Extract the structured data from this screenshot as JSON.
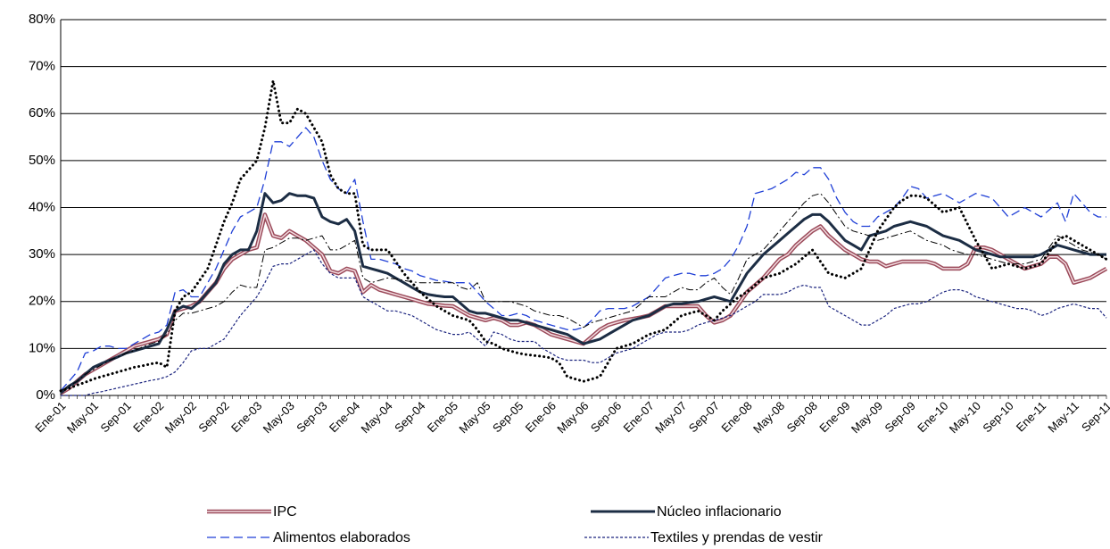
{
  "chart_data": {
    "type": "line",
    "categories": [
      "Ene-01",
      null,
      null,
      null,
      "May-01",
      null,
      null,
      null,
      "Sep-01",
      null,
      null,
      null,
      "Ene-02",
      null,
      null,
      null,
      "May-02",
      null,
      null,
      null,
      "Sep-02",
      null,
      null,
      null,
      "Ene-03",
      null,
      null,
      null,
      "May-03",
      null,
      null,
      null,
      "Sep-03",
      null,
      null,
      null,
      "Ene-04",
      null,
      null,
      null,
      "May-04",
      null,
      null,
      null,
      "Sep-04",
      null,
      null,
      null,
      "Ene-05",
      null,
      null,
      null,
      "May-05",
      null,
      null,
      null,
      "Sep-05",
      null,
      null,
      null,
      "Ene-06",
      null,
      null,
      null,
      "May-06",
      null,
      null,
      null,
      "Sep-06",
      null,
      null,
      null,
      "Ene-07",
      null,
      null,
      null,
      "May-07",
      null,
      null,
      null,
      "Sep-07",
      null,
      null,
      null,
      "Ene-08",
      null,
      null,
      null,
      "May-08",
      null,
      null,
      null,
      "Sep-08",
      null,
      null,
      null,
      "Ene-09",
      null,
      null,
      null,
      "May-09",
      null,
      null,
      null,
      "Sep-09",
      null,
      null,
      null,
      "Ene-10",
      null,
      null,
      null,
      "May-10",
      null,
      null,
      null,
      "Sep-10",
      null,
      null,
      null,
      "Ene-11",
      null,
      null,
      null,
      "May-11",
      null,
      null,
      null,
      "Sep-11"
    ],
    "ylim": [
      0,
      80
    ],
    "yticks": [
      {
        "value": 0,
        "label": "0%"
      },
      {
        "value": 10,
        "label": "10%"
      },
      {
        "value": 20,
        "label": "20%"
      },
      {
        "value": 30,
        "label": "30%"
      },
      {
        "value": 40,
        "label": "40%"
      },
      {
        "value": 50,
        "label": "50%"
      },
      {
        "value": 60,
        "label": "60%"
      },
      {
        "value": 70,
        "label": "70%"
      },
      {
        "value": 80,
        "label": "80%"
      }
    ],
    "grid": true,
    "series": [
      {
        "name": "IPC",
        "color": "#9b4a5a",
        "style": "double",
        "values": [
          0.5,
          1.5,
          3,
          4.5,
          5.5,
          6.5,
          7.5,
          8.5,
          9.5,
          10.5,
          11,
          11.5,
          12,
          13,
          18,
          18.5,
          19,
          20,
          22,
          24,
          27,
          29,
          30,
          31,
          31.5,
          38.5,
          34,
          33.5,
          35,
          34,
          33,
          31.5,
          30,
          26.5,
          26,
          27,
          26.5,
          22,
          23.5,
          22.5,
          22,
          21.5,
          21,
          20.5,
          20,
          19.5,
          19.3,
          19.1,
          19,
          18,
          17,
          16.5,
          16,
          16.5,
          16,
          15,
          15,
          15.5,
          15,
          14,
          13,
          12.5,
          12,
          11.5,
          11,
          12.5,
          14,
          15,
          15.5,
          16,
          16.3,
          16.6,
          17,
          18,
          19,
          19,
          19,
          19,
          19,
          17,
          15.5,
          16,
          17,
          19.5,
          22,
          23.5,
          25,
          27,
          29,
          30,
          32,
          33.5,
          35,
          36,
          34,
          32.5,
          31,
          30,
          29,
          28.5,
          28.5,
          27.5,
          28,
          28.5,
          28.5,
          28.5,
          28.5,
          28,
          27,
          27,
          27,
          28,
          31.5,
          31.5,
          31,
          30,
          29,
          28,
          27,
          27.5,
          28,
          29.5,
          29.5,
          28,
          24,
          24.5,
          25,
          26,
          27
        ]
      },
      {
        "name": "Núcleo inflacionario",
        "color": "#1c2d44",
        "style": "solid",
        "values": [
          0.5,
          2,
          3,
          4.5,
          6,
          6.8,
          7.5,
          8.2,
          9,
          9.5,
          10,
          10.5,
          11,
          14,
          18,
          19,
          18.5,
          20,
          22,
          24,
          28,
          30,
          31,
          31,
          35,
          43,
          41,
          41.5,
          43,
          42.5,
          42.5,
          42,
          38,
          37,
          36.5,
          37.5,
          35,
          27.5,
          27,
          26.5,
          26,
          25,
          24,
          23,
          22,
          21.5,
          21.2,
          21,
          21,
          19.5,
          18,
          17.5,
          17.5,
          17,
          16.5,
          16,
          16,
          15.5,
          15,
          14.5,
          14,
          13.5,
          13,
          12,
          11,
          11.5,
          12,
          13,
          14,
          15,
          16,
          16.5,
          17,
          18,
          19,
          19.5,
          19.5,
          19.8,
          20,
          20.5,
          21,
          20.5,
          20,
          23,
          26,
          28,
          30,
          31.5,
          33,
          34.5,
          36,
          37.5,
          38.5,
          38.5,
          37,
          35,
          33,
          32,
          31,
          34,
          34.5,
          35,
          36,
          36.5,
          37,
          36.5,
          36,
          35,
          34,
          33.5,
          33,
          32,
          31,
          30.5,
          30,
          29.5,
          29.5,
          29.5,
          29.5,
          29.5,
          30,
          31,
          32,
          31.5,
          31,
          30.5,
          30,
          30,
          30
        ]
      },
      {
        "name": "Alimentos elaborados",
        "color": "#1f3fd6",
        "style": "dash",
        "values": [
          1,
          3,
          5,
          9,
          9.5,
          10.5,
          10.5,
          10,
          10,
          11,
          12,
          13,
          13.5,
          15,
          22,
          22.5,
          21,
          21,
          24,
          27,
          31,
          35,
          38,
          39,
          40,
          46,
          54,
          54,
          53,
          55,
          57,
          55,
          50,
          46,
          44,
          43,
          46,
          37,
          29,
          29,
          28.5,
          28,
          27,
          26.5,
          25.5,
          25,
          24.5,
          24.3,
          24,
          24,
          24,
          22,
          20,
          18.5,
          17,
          17,
          17.5,
          17,
          16,
          15.5,
          15,
          14.5,
          14,
          14,
          14.5,
          16,
          18,
          18.5,
          18.5,
          18.5,
          19,
          20,
          21,
          23,
          25,
          25.5,
          26,
          26,
          25.5,
          25.5,
          26,
          27,
          29,
          32,
          36,
          43,
          43.5,
          44,
          45,
          46,
          47.5,
          47,
          48.5,
          48.5,
          46,
          42,
          39,
          37,
          36,
          36,
          38,
          39,
          40,
          42,
          44.5,
          44,
          42,
          42.5,
          43,
          42,
          41,
          42,
          43,
          42.5,
          42,
          40,
          38,
          39,
          40,
          39,
          38,
          39.5,
          41,
          37,
          43,
          41,
          39,
          38,
          38
        ]
      },
      {
        "name": "Textiles y prendas de vestir",
        "color": "#1a237e",
        "style": "shortdash",
        "values": [
          0,
          0,
          0,
          0,
          0.5,
          0.8,
          1.2,
          1.6,
          2,
          2.4,
          2.8,
          3.2,
          3.5,
          4,
          5,
          7,
          9.5,
          10,
          10,
          11,
          12,
          14.5,
          17,
          19,
          21,
          24,
          27.5,
          28,
          28,
          29,
          30,
          31,
          28,
          26,
          25,
          25,
          25,
          21,
          20,
          19,
          18,
          18,
          17.5,
          17,
          16,
          15,
          14,
          13.5,
          13,
          13,
          13.5,
          12,
          10.5,
          13.5,
          13,
          12,
          11.5,
          11.5,
          11.5,
          10,
          9,
          8,
          7.5,
          7.5,
          7.5,
          7,
          7,
          8,
          9,
          9.5,
          10,
          11,
          12,
          13,
          13.5,
          13.5,
          13.5,
          14,
          15,
          15.5,
          16,
          16.5,
          17,
          18,
          19,
          20,
          21.5,
          21.5,
          21.5,
          22,
          23,
          23.5,
          23,
          23,
          19,
          18,
          17,
          16,
          15,
          15,
          16,
          17,
          18.5,
          19,
          19.5,
          19.5,
          20,
          21,
          22,
          22.5,
          22.5,
          22,
          21,
          20.5,
          20,
          19.5,
          19,
          18.5,
          18.5,
          18,
          17,
          17.5,
          18.5,
          19,
          19.5,
          19,
          18.5,
          18.5,
          16.5
        ]
      },
      {
        "color": "#000000",
        "style": "dot",
        "values": [
          1,
          1.5,
          2.2,
          2.8,
          3.5,
          4,
          4.5,
          5,
          5.5,
          6,
          6.3,
          6.7,
          7,
          6,
          18,
          21,
          22,
          24.5,
          27,
          32,
          37,
          41,
          46,
          48,
          50,
          57,
          67,
          58,
          58,
          61,
          60,
          57,
          54,
          47,
          44,
          43,
          43,
          32,
          31,
          31,
          31,
          28.5,
          26,
          24,
          22,
          20.5,
          19,
          18,
          17,
          16.5,
          16,
          14,
          11.5,
          11,
          10,
          9.5,
          9,
          8.7,
          8.5,
          8.3,
          8,
          7,
          4,
          3.5,
          3,
          3.5,
          4,
          7,
          10,
          10.5,
          11,
          12,
          13,
          13.5,
          14,
          15.5,
          17,
          17.5,
          18,
          17,
          16,
          18,
          19.5,
          21,
          22,
          23.5,
          25,
          25.5,
          26,
          27,
          28,
          29.5,
          31,
          28.5,
          26,
          25.5,
          25,
          26,
          27,
          31,
          35,
          37.5,
          40,
          41.5,
          42.5,
          42.5,
          42,
          40.5,
          39,
          39.5,
          40,
          36.5,
          33,
          30,
          27,
          27.5,
          28,
          27.5,
          27,
          27.5,
          28,
          30.5,
          33,
          34,
          33,
          32,
          31,
          30,
          29
        ]
      },
      {
        "color": "#000000",
        "style": "dashdot",
        "values": [
          1,
          2,
          3,
          4.5,
          5.5,
          6.5,
          7.5,
          8.2,
          9,
          9.5,
          10.3,
          11,
          11.5,
          13,
          16,
          17.5,
          17.5,
          18,
          18.5,
          19,
          20,
          22,
          23.5,
          23,
          23,
          31,
          31.5,
          32.5,
          33.5,
          33.5,
          33,
          33.5,
          34,
          31,
          31,
          32,
          33,
          25,
          24,
          24.5,
          25,
          24.8,
          24.5,
          24.2,
          24,
          24,
          24,
          24,
          24,
          23,
          22.5,
          24,
          20,
          20,
          20,
          20,
          19.5,
          19,
          18,
          17.5,
          17,
          17,
          16.5,
          15.5,
          14.5,
          15.5,
          16,
          16.5,
          17,
          17.5,
          18,
          19.5,
          21,
          21,
          21,
          22,
          23,
          22.5,
          22.5,
          24,
          25,
          23,
          21.5,
          25,
          29,
          30,
          31,
          33,
          35,
          37,
          39,
          41,
          42.5,
          43,
          41,
          38.5,
          36,
          35,
          34.5,
          34,
          33,
          33.5,
          34,
          34.5,
          35,
          34,
          33,
          32.5,
          32,
          31,
          30.5,
          30,
          30,
          29.5,
          29,
          28.5,
          28,
          28,
          28,
          28.5,
          29,
          31.5,
          34,
          33,
          32,
          31,
          30.5,
          30,
          29
        ]
      }
    ]
  }
}
